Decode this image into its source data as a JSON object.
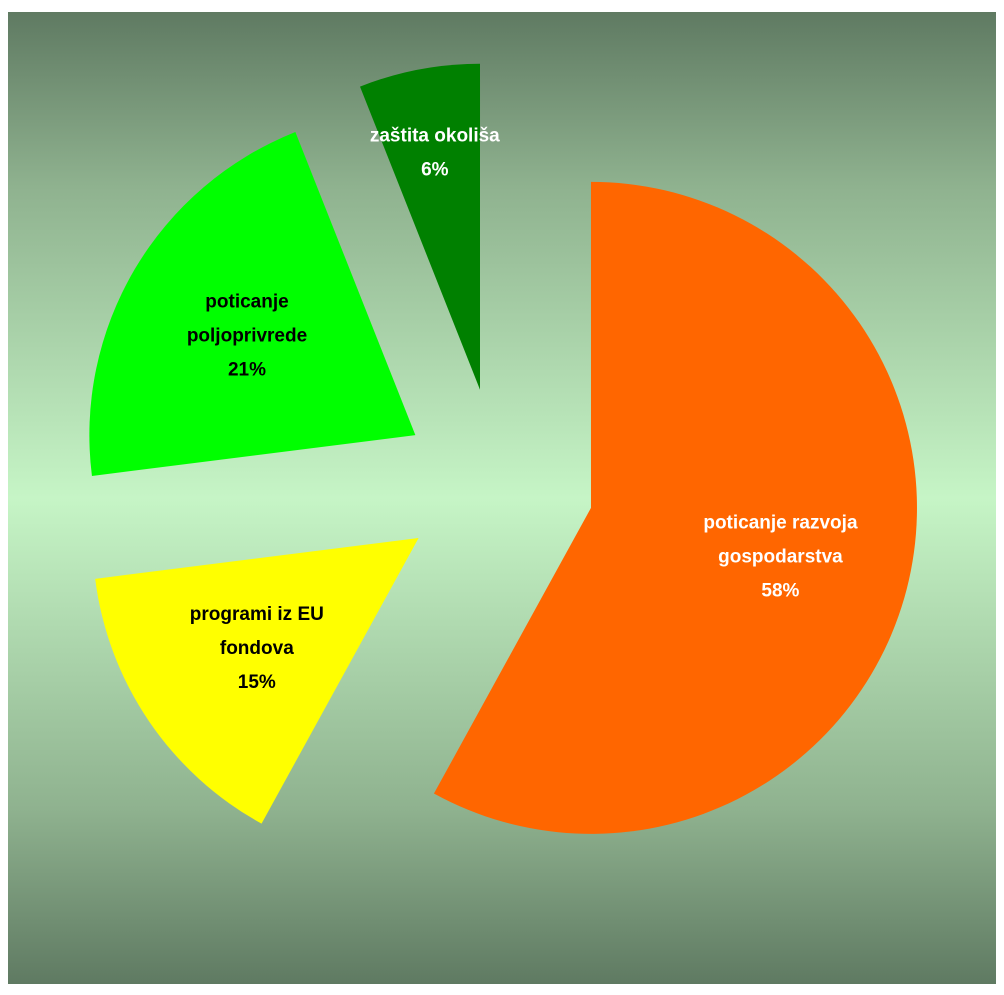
{
  "chart_data": {
    "type": "pie",
    "title": "",
    "slices": [
      {
        "name": "poticanje razvoja gospodarstva",
        "label_lines": [
          "poticanje razvoja",
          "gospodarstva"
        ],
        "value": 58,
        "value_label": "58%",
        "color": "#ff6600",
        "text_color": "#ffffff"
      },
      {
        "name": "programi iz EU fondova",
        "label_lines": [
          "programi iz EU",
          "fondova"
        ],
        "value": 15,
        "value_label": "15%",
        "color": "#ffff00",
        "text_color": "#000000"
      },
      {
        "name": "poticanje poljoprivrede",
        "label_lines": [
          "poticanje",
          "poljoprivrede"
        ],
        "value": 21,
        "value_label": "21%",
        "color": "#00ff00",
        "text_color": "#000000"
      },
      {
        "name": "zaštita okoliša",
        "label_lines": [
          "zaštita okoliša"
        ],
        "value": 6,
        "value_label": "6%",
        "color": "#008000",
        "text_color": "#ffffff"
      }
    ],
    "start_angle": "top",
    "direction": "clockwise",
    "exploded": true,
    "legend": "none"
  }
}
